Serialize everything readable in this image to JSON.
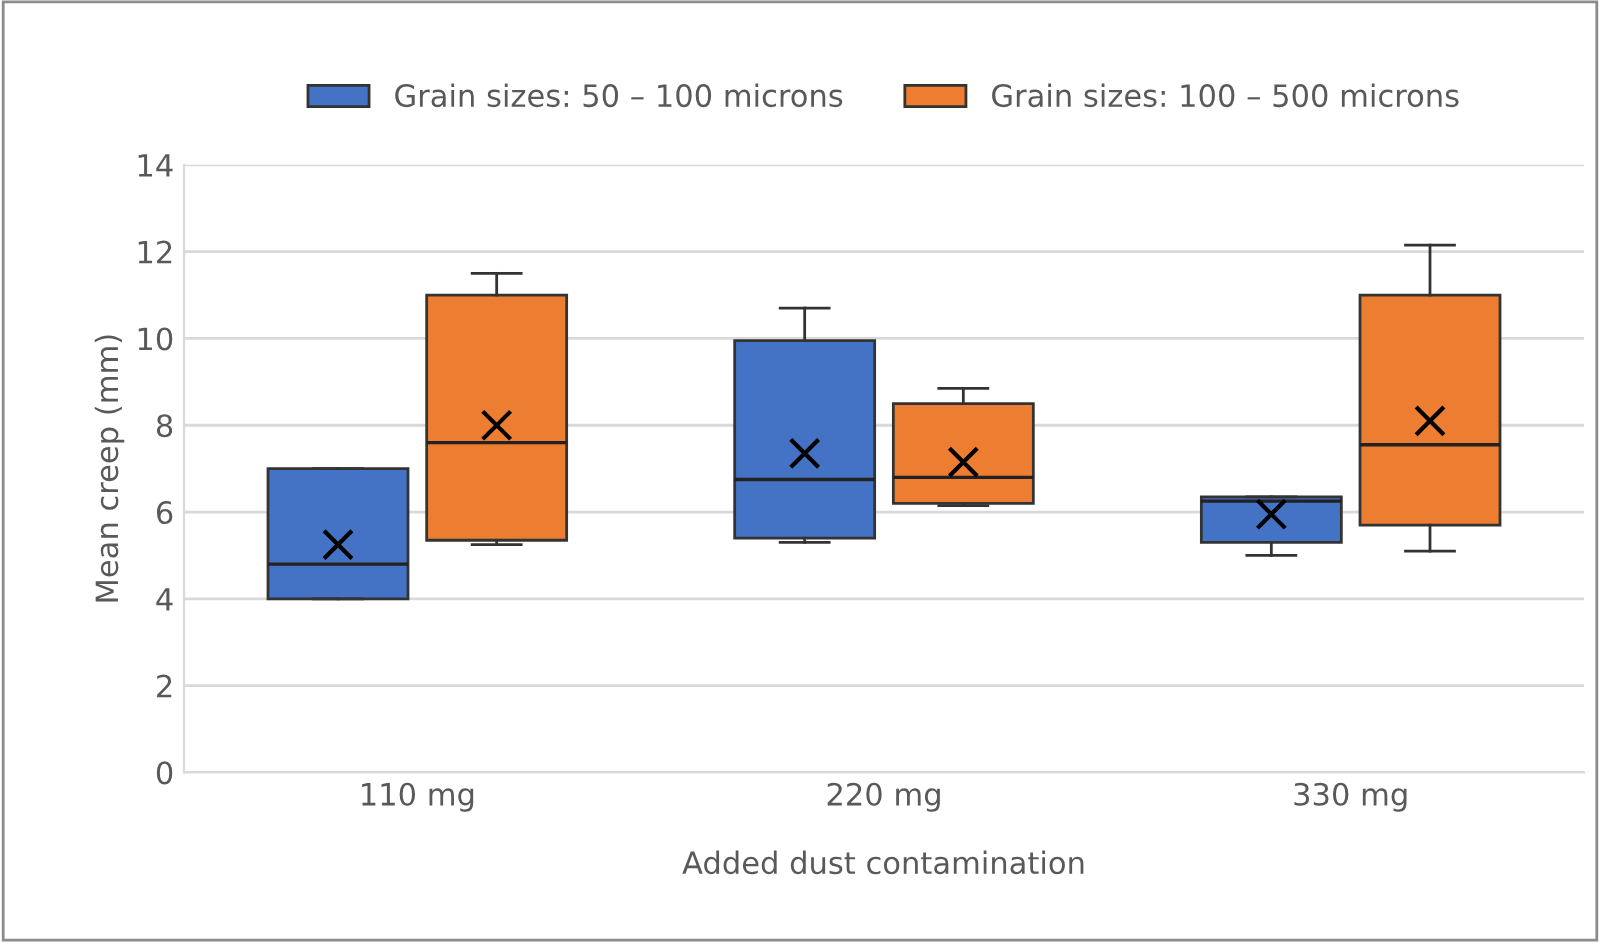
{
  "chart_data": {
    "type": "box",
    "xlabel": "Added dust contamination",
    "ylabel": "Mean creep (mm)",
    "categories": [
      "110 mg",
      "220 mg",
      "330 mg"
    ],
    "series": [
      {
        "name": "Grain sizes: 50 – 100 microns",
        "color": "#4472c4",
        "boxes": [
          {
            "low": 4.0,
            "q1": 4.0,
            "median": 4.8,
            "q3": 7.0,
            "high": 7.0,
            "mean": 5.25
          },
          {
            "low": 5.3,
            "q1": 5.4,
            "median": 6.75,
            "q3": 9.95,
            "high": 10.7,
            "mean": 7.35
          },
          {
            "low": 5.0,
            "q1": 5.3,
            "median": 6.25,
            "q3": 6.35,
            "high": 6.35,
            "mean": 5.95
          }
        ]
      },
      {
        "name": "Grain sizes: 100 – 500 microns",
        "color": "#ed7d31",
        "boxes": [
          {
            "low": 5.25,
            "q1": 5.35,
            "median": 7.6,
            "q3": 11.0,
            "high": 11.5,
            "mean": 8.0
          },
          {
            "low": 6.15,
            "q1": 6.2,
            "median": 6.8,
            "q3": 8.5,
            "high": 8.85,
            "mean": 7.15
          },
          {
            "low": 5.1,
            "q1": 5.7,
            "median": 7.55,
            "q3": 11.0,
            "high": 12.15,
            "mean": 8.1
          }
        ]
      }
    ],
    "ylim": [
      0,
      14
    ],
    "yticks": [
      0,
      2,
      4,
      6,
      8,
      10,
      12,
      14
    ],
    "grid": "y",
    "legend": "top",
    "marker": "cross"
  }
}
